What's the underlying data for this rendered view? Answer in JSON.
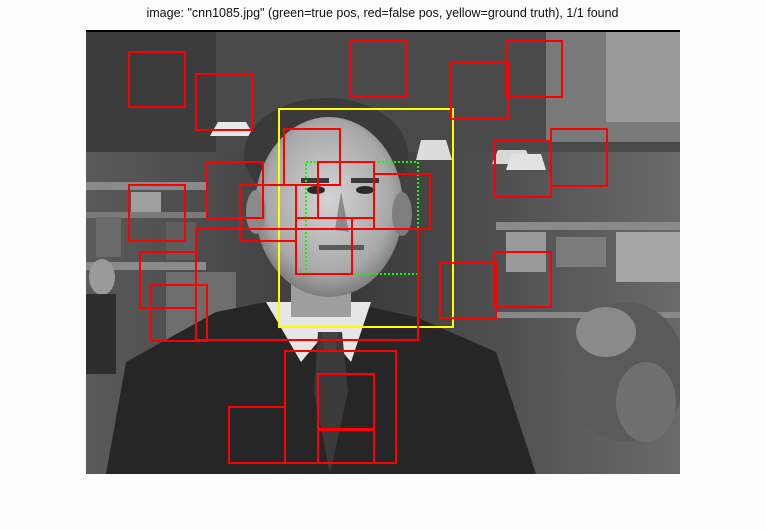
{
  "figure": {
    "title": "image: \"cnn1085.jpg\" (green=true pos, red=false pos, yellow=ground truth), 1/1 found"
  },
  "image": {
    "filename": "cnn1085.jpg",
    "content": "grayscale news frame: man in dark suit and tie, shop shelves in background"
  },
  "colors": {
    "true_positive": "#00ff00",
    "false_positive": "#ff0000",
    "ground_truth": "#ffff00"
  },
  "detections": {
    "ground_truth_count": 1,
    "true_positive_count": 1,
    "false_positive_count": 19,
    "found": "1/1"
  }
}
